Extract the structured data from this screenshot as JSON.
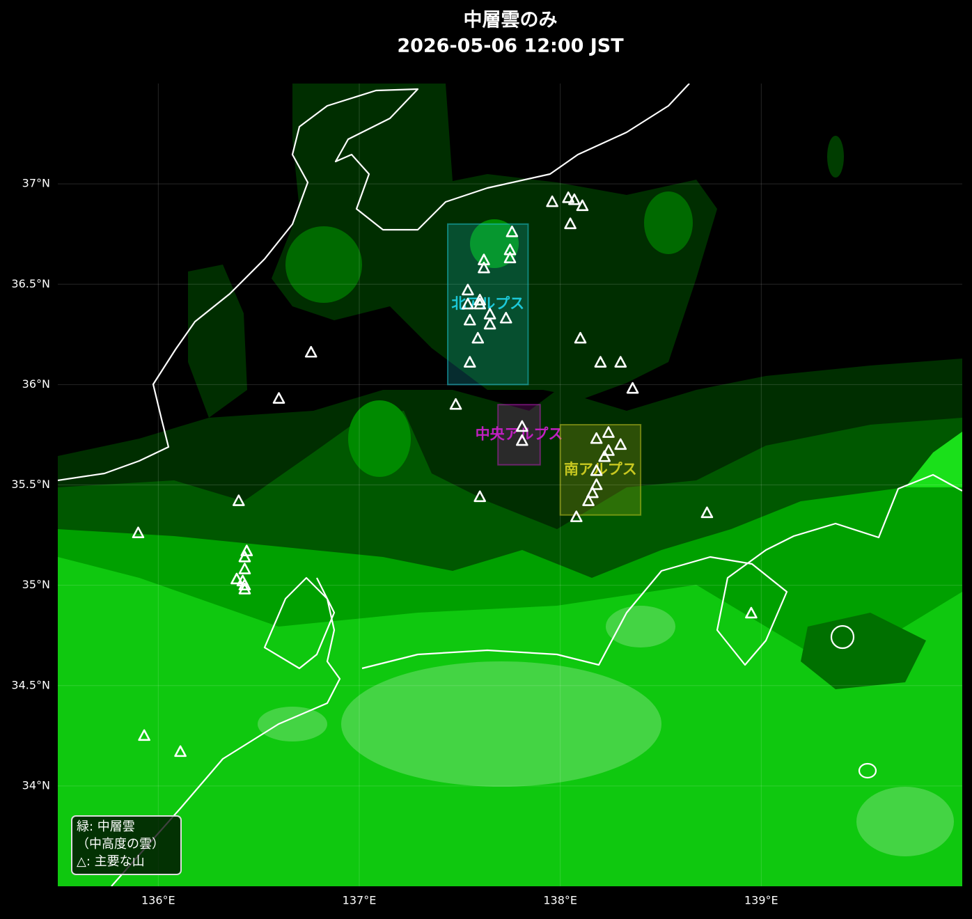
{
  "map": {
    "title": "中層雲のみ",
    "subtitle": "2026-05-06 12:00 JST",
    "xlim": [
      135.5,
      140.0
    ],
    "ylim": [
      33.5,
      37.5
    ],
    "xticks": [
      {
        "value": 136,
        "label": "136°E"
      },
      {
        "value": 137,
        "label": "137°E"
      },
      {
        "value": 138,
        "label": "138°E"
      },
      {
        "value": 139,
        "label": "139°E"
      }
    ],
    "yticks": [
      {
        "value": 34,
        "label": "34°N"
      },
      {
        "value": 34.5,
        "label": "34.5°N"
      },
      {
        "value": 35,
        "label": "35°N"
      },
      {
        "value": 35.5,
        "label": "35.5°N"
      },
      {
        "value": 36,
        "label": "36°N"
      },
      {
        "value": 36.5,
        "label": "36.5°N"
      },
      {
        "value": 37,
        "label": "37°N"
      }
    ],
    "grid": true,
    "regions": [
      {
        "name": "北アルプス",
        "color": "#1cc8d8",
        "lon": [
          137.44,
          137.84
        ],
        "lat": [
          36.0,
          36.8
        ]
      },
      {
        "name": "中央アルプス",
        "color": "#c020c0",
        "lon": [
          137.69,
          137.9
        ],
        "lat": [
          35.6,
          35.9
        ]
      },
      {
        "name": "南アルプス",
        "color": "#c8c820",
        "lon": [
          138.0,
          138.4
        ],
        "lat": [
          35.35,
          35.8
        ]
      }
    ],
    "mountains": {
      "lon": [
        137.96,
        138.04,
        138.07,
        138.11,
        138.05,
        137.76,
        137.75,
        137.75,
        137.62,
        137.62,
        137.54,
        137.54,
        137.6,
        137.6,
        137.65,
        137.55,
        137.65,
        137.73,
        137.59,
        137.55,
        138.1,
        138.2,
        138.3,
        138.36,
        137.48,
        137.81,
        137.81,
        138.18,
        138.24,
        138.3,
        138.24,
        138.22,
        138.18,
        138.18,
        138.16,
        138.14,
        138.08,
        137.6,
        138.73,
        138.95,
        136.76,
        136.6,
        136.4,
        135.9,
        136.44,
        136.43,
        136.43,
        136.39,
        136.42,
        136.43,
        136.43,
        135.93,
        136.11
      ],
      "lat": [
        36.91,
        36.93,
        36.92,
        36.89,
        36.8,
        36.76,
        36.67,
        36.63,
        36.62,
        36.58,
        36.47,
        36.4,
        36.42,
        36.4,
        36.35,
        36.32,
        36.3,
        36.33,
        36.23,
        36.11,
        36.23,
        36.11,
        36.11,
        35.98,
        35.9,
        35.79,
        35.72,
        35.73,
        35.76,
        35.7,
        35.67,
        35.64,
        35.57,
        35.5,
        35.46,
        35.42,
        35.34,
        35.44,
        35.36,
        34.86,
        36.16,
        35.93,
        35.42,
        35.26,
        35.17,
        35.14,
        35.08,
        35.03,
        35.02,
        35.0,
        34.98,
        34.25,
        34.17
      ]
    },
    "legend": [
      "緑: 中層雲",
      "（中高度の雲）",
      "△: 主要な山"
    ]
  }
}
